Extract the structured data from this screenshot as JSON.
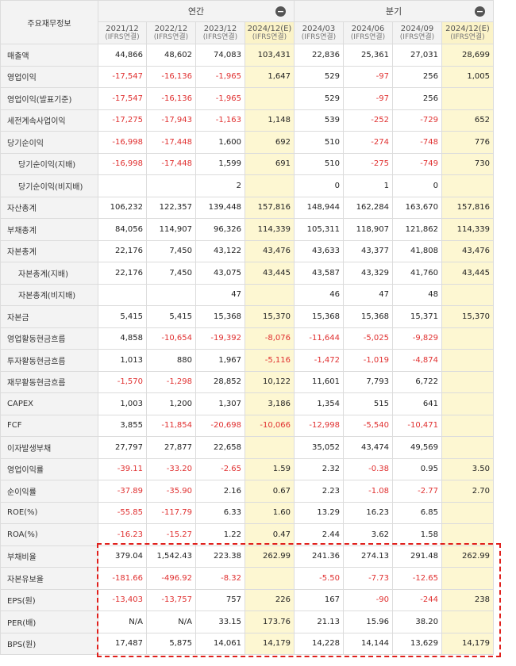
{
  "header": {
    "corner_label": "주요재무정보",
    "annual_label": "연간",
    "quarter_label": "분기",
    "collapse_symbol": "−",
    "columns": [
      {
        "date": "2021/12",
        "basis": "(IFRS연결)",
        "estimate": false
      },
      {
        "date": "2022/12",
        "basis": "(IFRS연결)",
        "estimate": false
      },
      {
        "date": "2023/12",
        "basis": "(IFRS연결)",
        "estimate": false
      },
      {
        "date": "2024/12(E)",
        "basis": "(IFRS연결)",
        "estimate": true
      },
      {
        "date": "2024/03",
        "basis": "(IFRS연결)",
        "estimate": false
      },
      {
        "date": "2024/06",
        "basis": "(IFRS연결)",
        "estimate": false
      },
      {
        "date": "2024/09",
        "basis": "(IFRS연결)",
        "estimate": false
      },
      {
        "date": "2024/12(E)",
        "basis": "(IFRS연결)",
        "estimate": true
      }
    ]
  },
  "rows": [
    {
      "label": "매출액",
      "indent": false,
      "values": [
        "44,866",
        "48,602",
        "74,083",
        "103,431",
        "22,836",
        "25,361",
        "27,031",
        "28,699"
      ]
    },
    {
      "label": "영업이익",
      "indent": false,
      "values": [
        "-17,547",
        "-16,136",
        "-1,965",
        "1,647",
        "529",
        "-97",
        "256",
        "1,005"
      ]
    },
    {
      "label": "영업이익(발표기준)",
      "indent": false,
      "values": [
        "-17,547",
        "-16,136",
        "-1,965",
        "",
        "529",
        "-97",
        "256",
        ""
      ]
    },
    {
      "label": "세전계속사업이익",
      "indent": false,
      "values": [
        "-17,275",
        "-17,943",
        "-1,163",
        "1,148",
        "539",
        "-252",
        "-729",
        "652"
      ]
    },
    {
      "label": "당기순이익",
      "indent": false,
      "values": [
        "-16,998",
        "-17,448",
        "1,600",
        "692",
        "510",
        "-274",
        "-748",
        "776"
      ]
    },
    {
      "label": "당기순이익(지배)",
      "indent": true,
      "values": [
        "-16,998",
        "-17,448",
        "1,599",
        "691",
        "510",
        "-275",
        "-749",
        "730"
      ]
    },
    {
      "label": "당기순이익(비지배)",
      "indent": true,
      "values": [
        "",
        "",
        "2",
        "",
        "0",
        "1",
        "0",
        ""
      ]
    },
    {
      "label": "자산총계",
      "indent": false,
      "values": [
        "106,232",
        "122,357",
        "139,448",
        "157,816",
        "148,944",
        "162,284",
        "163,670",
        "157,816"
      ]
    },
    {
      "label": "부채총계",
      "indent": false,
      "values": [
        "84,056",
        "114,907",
        "96,326",
        "114,339",
        "105,311",
        "118,907",
        "121,862",
        "114,339"
      ]
    },
    {
      "label": "자본총계",
      "indent": false,
      "values": [
        "22,176",
        "7,450",
        "43,122",
        "43,476",
        "43,633",
        "43,377",
        "41,808",
        "43,476"
      ]
    },
    {
      "label": "자본총계(지배)",
      "indent": true,
      "values": [
        "22,176",
        "7,450",
        "43,075",
        "43,445",
        "43,587",
        "43,329",
        "41,760",
        "43,445"
      ]
    },
    {
      "label": "자본총계(비지배)",
      "indent": true,
      "values": [
        "",
        "",
        "47",
        "",
        "46",
        "47",
        "48",
        ""
      ]
    },
    {
      "label": "자본금",
      "indent": false,
      "values": [
        "5,415",
        "5,415",
        "15,368",
        "15,370",
        "15,368",
        "15,368",
        "15,371",
        "15,370"
      ]
    },
    {
      "label": "영업활동현금흐름",
      "indent": false,
      "values": [
        "4,858",
        "-10,654",
        "-19,392",
        "-8,076",
        "-11,644",
        "-5,025",
        "-9,829",
        ""
      ]
    },
    {
      "label": "투자활동현금흐름",
      "indent": false,
      "values": [
        "1,013",
        "880",
        "1,967",
        "-5,116",
        "-1,472",
        "-1,019",
        "-4,874",
        ""
      ]
    },
    {
      "label": "재무활동현금흐름",
      "indent": false,
      "values": [
        "-1,570",
        "-1,298",
        "28,852",
        "10,122",
        "11,601",
        "7,793",
        "6,722",
        ""
      ]
    },
    {
      "label": "CAPEX",
      "indent": false,
      "values": [
        "1,003",
        "1,200",
        "1,307",
        "3,186",
        "1,354",
        "515",
        "641",
        ""
      ]
    },
    {
      "label": "FCF",
      "indent": false,
      "values": [
        "3,855",
        "-11,854",
        "-20,698",
        "-10,066",
        "-12,998",
        "-5,540",
        "-10,471",
        ""
      ]
    },
    {
      "label": "이자발생부채",
      "indent": false,
      "values": [
        "27,797",
        "27,877",
        "22,658",
        "",
        "35,052",
        "43,474",
        "49,569",
        ""
      ]
    },
    {
      "label": "영업이익률",
      "indent": false,
      "values": [
        "-39.11",
        "-33.20",
        "-2.65",
        "1.59",
        "2.32",
        "-0.38",
        "0.95",
        "3.50"
      ]
    },
    {
      "label": "순이익률",
      "indent": false,
      "values": [
        "-37.89",
        "-35.90",
        "2.16",
        "0.67",
        "2.23",
        "-1.08",
        "-2.77",
        "2.70"
      ]
    },
    {
      "label": "ROE(%)",
      "indent": false,
      "values": [
        "-55.85",
        "-117.79",
        "6.33",
        "1.60",
        "13.29",
        "16.23",
        "6.85",
        ""
      ]
    },
    {
      "label": "ROA(%)",
      "indent": false,
      "values": [
        "-16.23",
        "-15.27",
        "1.22",
        "0.47",
        "2.44",
        "3.62",
        "1.58",
        ""
      ]
    },
    {
      "label": "부채비율",
      "indent": false,
      "values": [
        "379.04",
        "1,542.43",
        "223.38",
        "262.99",
        "241.36",
        "274.13",
        "291.48",
        "262.99"
      ]
    },
    {
      "label": "자본유보율",
      "indent": false,
      "values": [
        "-181.66",
        "-496.92",
        "-8.32",
        "",
        "-5.50",
        "-7.73",
        "-12.65",
        ""
      ]
    },
    {
      "label": "EPS(원)",
      "indent": false,
      "values": [
        "-13,403",
        "-13,757",
        "757",
        "226",
        "167",
        "-90",
        "-244",
        "238"
      ]
    },
    {
      "label": "PER(배)",
      "indent": false,
      "values": [
        "N/A",
        "N/A",
        "33.15",
        "173.76",
        "21.13",
        "15.96",
        "38.20",
        ""
      ]
    },
    {
      "label": "BPS(원)",
      "indent": false,
      "values": [
        "17,487",
        "5,875",
        "14,061",
        "14,179",
        "14,228",
        "14,144",
        "13,629",
        "14,179"
      ]
    }
  ],
  "colors": {
    "negative": "#e03030",
    "estimate_bg": "#fdf7d2",
    "highlight_border": "#e0201c"
  }
}
